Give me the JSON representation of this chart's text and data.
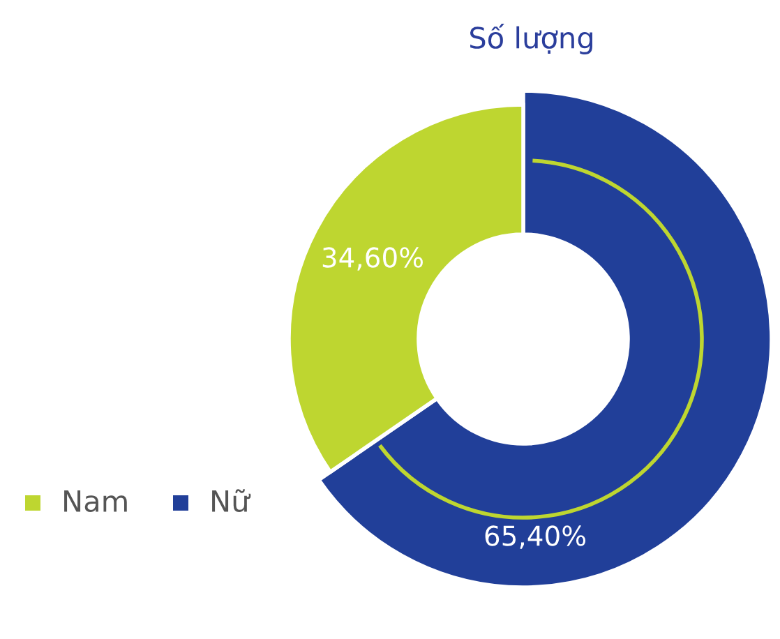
{
  "chart_data": {
    "type": "donut",
    "title": "Số lượng",
    "categories": [
      "Nam",
      "Nữ"
    ],
    "values": [
      34.6,
      65.4
    ],
    "value_labels": [
      "34,60%",
      "65,40%"
    ],
    "colors": [
      "#bed630",
      "#213f99"
    ],
    "legend": "left"
  }
}
